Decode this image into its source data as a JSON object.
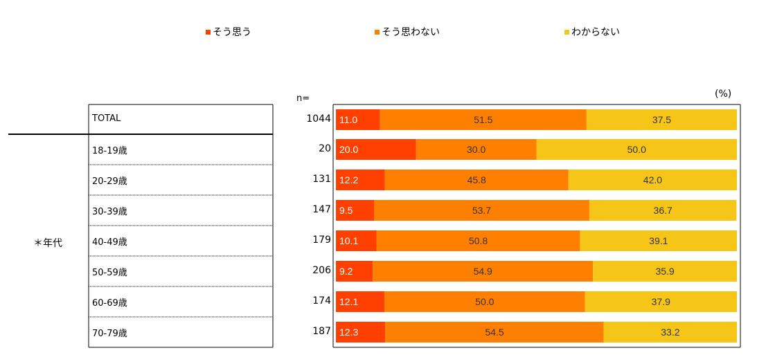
{
  "chart_data": {
    "type": "bar",
    "orientation": "horizontal",
    "stacked": true,
    "percent_unit_label": "(%)",
    "n_label": "n=",
    "group_label": "＊年代",
    "legend": [
      {
        "name": "そう思う",
        "color": "#ff4000"
      },
      {
        "name": "そう思わない",
        "color": "#ff8000"
      },
      {
        "name": "わからない",
        "color": "#f5c518"
      }
    ],
    "rows": [
      {
        "label": "TOTAL",
        "n": "1044",
        "values": [
          11.0,
          51.5,
          37.5
        ],
        "value_labels": [
          "11.0",
          "51.5",
          "37.5"
        ]
      },
      {
        "label": "18-19歳",
        "n": "20",
        "values": [
          20.0,
          30.0,
          50.0
        ],
        "value_labels": [
          "20.0",
          "30.0",
          "50.0"
        ]
      },
      {
        "label": "20-29歳",
        "n": "131",
        "values": [
          12.2,
          45.8,
          42.0
        ],
        "value_labels": [
          "12.2",
          "45.8",
          "42.0"
        ]
      },
      {
        "label": "30-39歳",
        "n": "147",
        "values": [
          9.5,
          53.7,
          36.7
        ],
        "value_labels": [
          "9.5",
          "53.7",
          "36.7"
        ]
      },
      {
        "label": "40-49歳",
        "n": "179",
        "values": [
          10.1,
          50.8,
          39.1
        ],
        "value_labels": [
          "10.1",
          "50.8",
          "39.1"
        ]
      },
      {
        "label": "50-59歳",
        "n": "206",
        "values": [
          9.2,
          54.9,
          35.9
        ],
        "value_labels": [
          "9.2",
          "54.9",
          "35.9"
        ]
      },
      {
        "label": "60-69歳",
        "n": "174",
        "values": [
          12.1,
          50.0,
          37.9
        ],
        "value_labels": [
          "12.1",
          "50.0",
          "37.9"
        ]
      },
      {
        "label": "70-79歳",
        "n": "187",
        "values": [
          12.3,
          54.5,
          33.2
        ],
        "value_labels": [
          "12.3",
          "54.5",
          "33.2"
        ]
      }
    ],
    "xlim": [
      0,
      100
    ]
  }
}
